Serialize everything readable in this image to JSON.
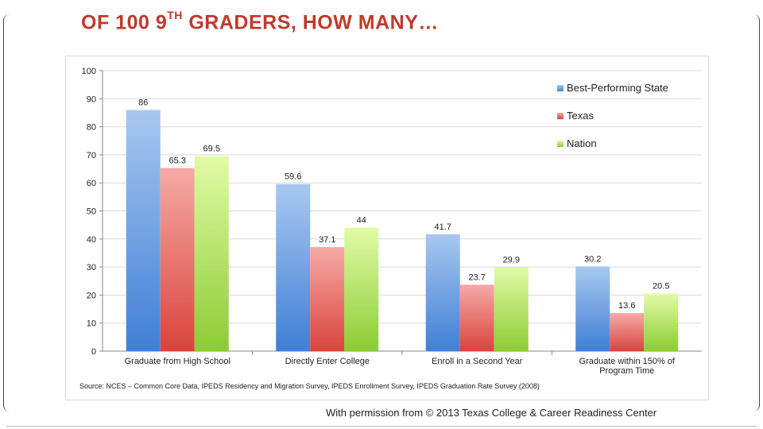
{
  "slide": {
    "title_prefix": "OF 100 9",
    "title_sup": "TH",
    "title_suffix": " GRADERS, HOW MANY…",
    "source": "Source: NCES – Common Core Data, IPEDS Residency and Migration Survey, IPEDS Enrollment Survey, IPEDS Graduation Rate Survey (2008)",
    "permission": "With permission from © 2013 Texas College & Career Readiness Center"
  },
  "chart_data": {
    "type": "bar",
    "categories": [
      "Graduate from High School",
      "Directly Enter College",
      "Enroll in a Second Year",
      "Graduate within 150% of Program Time"
    ],
    "category_lines": [
      [
        "Graduate from High School"
      ],
      [
        "Directly Enter College"
      ],
      [
        "Enroll in a Second Year"
      ],
      [
        "Graduate within 150% of",
        "Program Time"
      ]
    ],
    "series": [
      {
        "name": "Best-Performing State",
        "values": [
          86,
          59.6,
          41.7,
          30.2
        ],
        "labels": [
          "86",
          "59.6",
          "41.7",
          "30.2"
        ],
        "color_top": "#a8c8f0",
        "color_bottom": "#3f7fd6"
      },
      {
        "name": "Texas",
        "values": [
          65.3,
          37.1,
          23.7,
          13.6
        ],
        "labels": [
          "65.3",
          "37.1",
          "23.7",
          "13.6"
        ],
        "color_top": "#f6aaa6",
        "color_bottom": "#d9443c"
      },
      {
        "name": "Nation",
        "values": [
          69.5,
          44,
          29.9,
          20.5
        ],
        "labels": [
          "69.5",
          "44",
          "29.9",
          "20.5"
        ],
        "color_top": "#e2fba6",
        "color_bottom": "#8ccc34"
      }
    ],
    "ylim": [
      0,
      100
    ],
    "yticks": [
      0,
      10,
      20,
      30,
      40,
      50,
      60,
      70,
      80,
      90,
      100
    ],
    "grid": true,
    "legend_position": "right",
    "xlabel": "",
    "ylabel": ""
  }
}
